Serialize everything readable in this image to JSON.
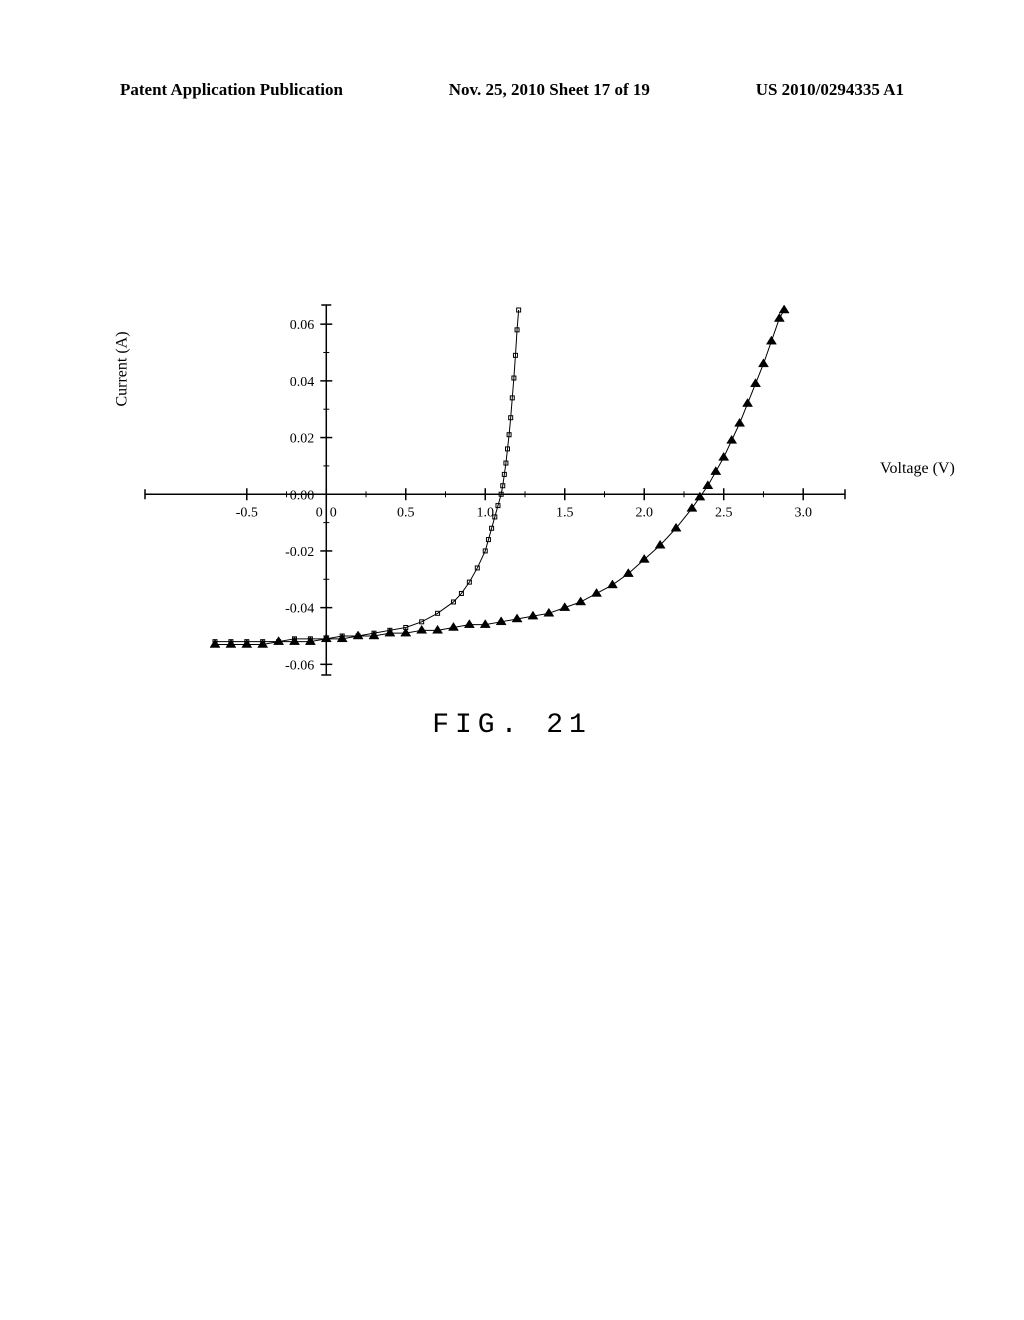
{
  "header": {
    "left": "Patent Application Publication",
    "center": "Nov. 25, 2010  Sheet 17 of 19",
    "right": "US 2010/0294335 A1"
  },
  "figure_label": "FIG. 21",
  "chart": {
    "type": "line",
    "x_axis": {
      "label": "Voltage (V)",
      "min": -0.7,
      "max": 3.2,
      "tick_start": -0.5,
      "tick_step": 0.5,
      "tick_labels": [
        "-0.5",
        "0",
        "0.5",
        "1.0",
        "1.5",
        "2.0",
        "2.5",
        "3.0"
      ],
      "minor_step": 0.25
    },
    "y_axis": {
      "label": "Current (A)",
      "min": -0.062,
      "max": 0.065,
      "tick_start": -0.06,
      "tick_step": 0.02,
      "tick_labels": [
        "-0.06",
        "-0.04",
        "-0.02",
        "0.00",
        "0.02",
        "0.04",
        "0.06"
      ],
      "minor_step": 0.01
    },
    "series": [
      {
        "name": "curve1",
        "marker": "square",
        "marker_size": 4,
        "color": "#000000",
        "points": [
          [
            -0.7,
            -0.052
          ],
          [
            -0.6,
            -0.052
          ],
          [
            -0.5,
            -0.052
          ],
          [
            -0.4,
            -0.052
          ],
          [
            -0.3,
            -0.052
          ],
          [
            -0.2,
            -0.051
          ],
          [
            -0.1,
            -0.051
          ],
          [
            0.0,
            -0.051
          ],
          [
            0.1,
            -0.05
          ],
          [
            0.2,
            -0.05
          ],
          [
            0.3,
            -0.049
          ],
          [
            0.4,
            -0.048
          ],
          [
            0.5,
            -0.047
          ],
          [
            0.6,
            -0.045
          ],
          [
            0.7,
            -0.042
          ],
          [
            0.8,
            -0.038
          ],
          [
            0.85,
            -0.035
          ],
          [
            0.9,
            -0.031
          ],
          [
            0.95,
            -0.026
          ],
          [
            1.0,
            -0.02
          ],
          [
            1.02,
            -0.016
          ],
          [
            1.04,
            -0.012
          ],
          [
            1.06,
            -0.008
          ],
          [
            1.08,
            -0.004
          ],
          [
            1.1,
            0.0
          ],
          [
            1.11,
            0.003
          ],
          [
            1.12,
            0.007
          ],
          [
            1.13,
            0.011
          ],
          [
            1.14,
            0.016
          ],
          [
            1.15,
            0.021
          ],
          [
            1.16,
            0.027
          ],
          [
            1.17,
            0.034
          ],
          [
            1.18,
            0.041
          ],
          [
            1.19,
            0.049
          ],
          [
            1.2,
            0.058
          ],
          [
            1.21,
            0.065
          ]
        ]
      },
      {
        "name": "curve2",
        "marker": "triangle",
        "marker_size": 5,
        "color": "#000000",
        "points": [
          [
            -0.7,
            -0.053
          ],
          [
            -0.6,
            -0.053
          ],
          [
            -0.5,
            -0.053
          ],
          [
            -0.4,
            -0.053
          ],
          [
            -0.3,
            -0.052
          ],
          [
            -0.2,
            -0.052
          ],
          [
            -0.1,
            -0.052
          ],
          [
            0.0,
            -0.051
          ],
          [
            0.1,
            -0.051
          ],
          [
            0.2,
            -0.05
          ],
          [
            0.3,
            -0.05
          ],
          [
            0.4,
            -0.049
          ],
          [
            0.5,
            -0.049
          ],
          [
            0.6,
            -0.048
          ],
          [
            0.7,
            -0.048
          ],
          [
            0.8,
            -0.047
          ],
          [
            0.9,
            -0.046
          ],
          [
            1.0,
            -0.046
          ],
          [
            1.1,
            -0.045
          ],
          [
            1.2,
            -0.044
          ],
          [
            1.3,
            -0.043
          ],
          [
            1.4,
            -0.042
          ],
          [
            1.5,
            -0.04
          ],
          [
            1.6,
            -0.038
          ],
          [
            1.7,
            -0.035
          ],
          [
            1.8,
            -0.032
          ],
          [
            1.9,
            -0.028
          ],
          [
            2.0,
            -0.023
          ],
          [
            2.1,
            -0.018
          ],
          [
            2.2,
            -0.012
          ],
          [
            2.3,
            -0.005
          ],
          [
            2.35,
            -0.001
          ],
          [
            2.4,
            0.003
          ],
          [
            2.45,
            0.008
          ],
          [
            2.5,
            0.013
          ],
          [
            2.55,
            0.019
          ],
          [
            2.6,
            0.025
          ],
          [
            2.65,
            0.032
          ],
          [
            2.7,
            0.039
          ],
          [
            2.75,
            0.046
          ],
          [
            2.8,
            0.054
          ],
          [
            2.85,
            0.062
          ],
          [
            2.88,
            0.065
          ]
        ]
      }
    ],
    "axis_color": "#000000",
    "axis_width": 1.5,
    "tick_length": 6,
    "background": "#ffffff",
    "font_size_ticks": 14,
    "font_size_labels": 16
  }
}
